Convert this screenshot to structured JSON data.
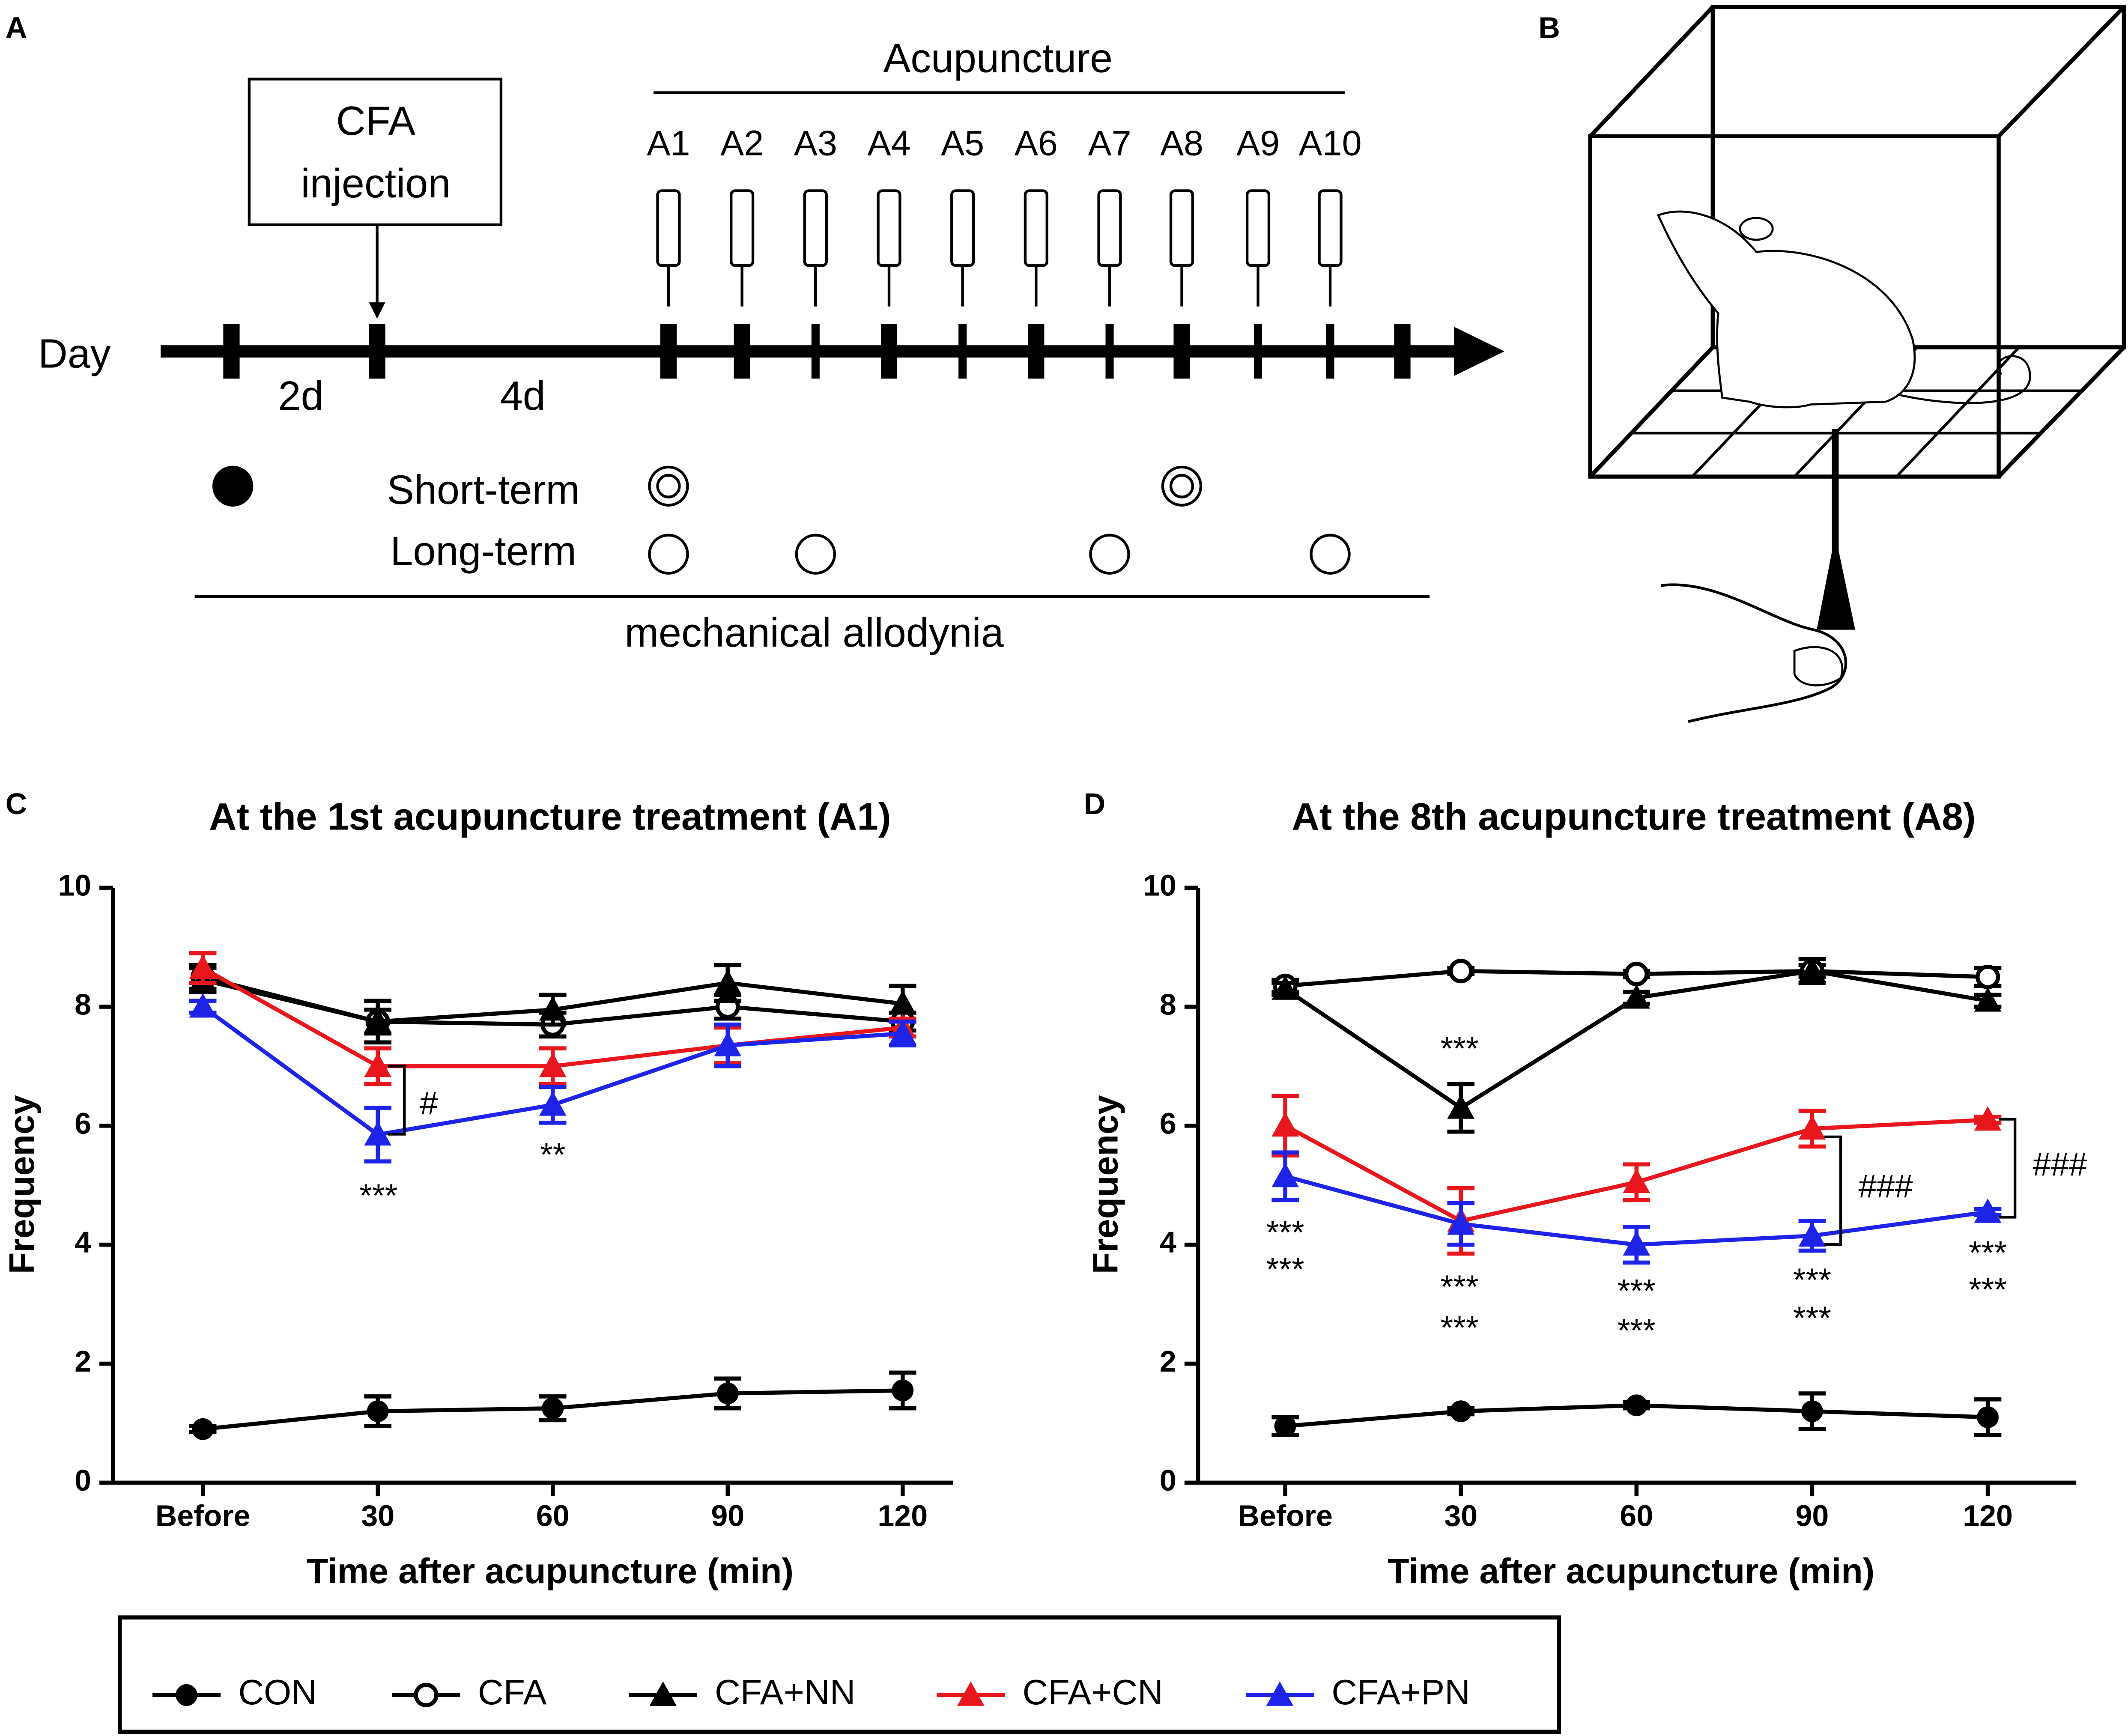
{
  "panel_a": {
    "label": "A",
    "cfa_box": [
      "CFA",
      "injection"
    ],
    "acupuncture": "Acupuncture",
    "sessions": [
      "A1",
      "A2",
      "A3",
      "A4",
      "A5",
      "A6",
      "A7",
      "A8",
      "A9",
      "A10"
    ],
    "day": "Day",
    "intervals": [
      "2d",
      "4d"
    ],
    "short_term": "Short-term",
    "long_term": "Long-term",
    "measure": "mechanical allodynia"
  },
  "panel_b": {
    "label": "B"
  },
  "chart_data": [
    {
      "type": "line",
      "panel": "C",
      "title": "At the 1st acupuncture treatment (A1)",
      "xlabel": "Time after acupuncture (min)",
      "ylabel": "Frequency",
      "categories": [
        "Before",
        "30",
        "60",
        "90",
        "120"
      ],
      "ylim": [
        0,
        10
      ],
      "yticks": [
        0,
        2,
        4,
        6,
        8,
        10
      ],
      "series": [
        {
          "name": "CON",
          "color": "#000000",
          "marker": "circle",
          "values": [
            0.9,
            1.2,
            1.25,
            1.5,
            1.55
          ],
          "errors": [
            0.05,
            0.25,
            0.2,
            0.25,
            0.3
          ]
        },
        {
          "name": "CFA",
          "color": "#000000",
          "marker": "open-circle",
          "values": [
            8.5,
            7.75,
            7.7,
            8.0,
            7.75
          ],
          "errors": [
            0.2,
            0.2,
            0.2,
            0.2,
            0.15
          ]
        },
        {
          "name": "CFA+NN",
          "color": "#000000",
          "marker": "triangle",
          "values": [
            8.45,
            7.75,
            7.95,
            8.4,
            8.05
          ],
          "errors": [
            0.2,
            0.35,
            0.25,
            0.3,
            0.3
          ]
        },
        {
          "name": "CFA+CN",
          "color": "#e8161d",
          "marker": "triangle",
          "values": [
            8.65,
            7.0,
            7.0,
            7.35,
            7.65
          ],
          "errors": [
            0.25,
            0.3,
            0.3,
            0.3,
            0.15
          ]
        },
        {
          "name": "CFA+PN",
          "color": "#1d24e8",
          "marker": "triangle",
          "values": [
            8.0,
            5.85,
            6.35,
            7.35,
            7.55
          ],
          "errors": [
            0.1,
            0.45,
            0.3,
            0.35,
            0.2
          ]
        }
      ],
      "annotations": [
        {
          "text": "***",
          "color": "#1d24e8"
        },
        {
          "text": "**",
          "color": "#1d24e8"
        },
        {
          "text": "#",
          "color": "#000000"
        }
      ]
    },
    {
      "type": "line",
      "panel": "D",
      "title": "At the 8th acupuncture treatment (A8)",
      "xlabel": "Time after acupuncture (min)",
      "ylabel": "Frequency",
      "categories": [
        "Before",
        "30",
        "60",
        "90",
        "120"
      ],
      "ylim": [
        0,
        10
      ],
      "yticks": [
        0,
        2,
        4,
        6,
        8,
        10
      ],
      "series": [
        {
          "name": "CON",
          "color": "#000000",
          "marker": "circle",
          "values": [
            0.95,
            1.2,
            1.3,
            1.2,
            1.1
          ],
          "errors": [
            0.15,
            0.05,
            0.05,
            0.3,
            0.3
          ]
        },
        {
          "name": "CFA",
          "color": "#000000",
          "marker": "open-circle",
          "values": [
            8.35,
            8.6,
            8.55,
            8.6,
            8.5
          ],
          "errors": [
            0.1,
            0.05,
            0.05,
            0.1,
            0.15
          ]
        },
        {
          "name": "CFA+NN",
          "color": "#000000",
          "marker": "triangle",
          "values": [
            8.3,
            6.3,
            8.15,
            8.6,
            8.1
          ],
          "errors": [
            0.1,
            0.4,
            0.1,
            0.2,
            0.1
          ]
        },
        {
          "name": "CFA+CN",
          "color": "#e8161d",
          "marker": "triangle",
          "values": [
            6.0,
            4.4,
            5.05,
            5.95,
            6.1
          ],
          "errors": [
            0.5,
            0.55,
            0.3,
            0.3,
            0.05
          ]
        },
        {
          "name": "CFA+PN",
          "color": "#1d24e8",
          "marker": "triangle",
          "values": [
            5.15,
            4.35,
            4.0,
            4.15,
            4.55
          ],
          "errors": [
            0.4,
            0.35,
            0.3,
            0.25,
            0.05
          ]
        }
      ],
      "annotations": [
        {
          "text": "***",
          "color": "#000000"
        },
        {
          "text": "***",
          "color": "#e8161d"
        },
        {
          "text": "***",
          "color": "#e8161d"
        },
        {
          "text": "***",
          "color": "#e8161d"
        },
        {
          "text": "***",
          "color": "#e8161d"
        },
        {
          "text": "***",
          "color": "#e8161d"
        },
        {
          "text": "***",
          "color": "#1d24e8"
        },
        {
          "text": "***",
          "color": "#1d24e8"
        },
        {
          "text": "***",
          "color": "#1d24e8"
        },
        {
          "text": "***",
          "color": "#1d24e8"
        },
        {
          "text": "***",
          "color": "#1d24e8"
        },
        {
          "text": "###",
          "color": "#000000"
        },
        {
          "text": "###",
          "color": "#000000"
        }
      ]
    }
  ]
}
